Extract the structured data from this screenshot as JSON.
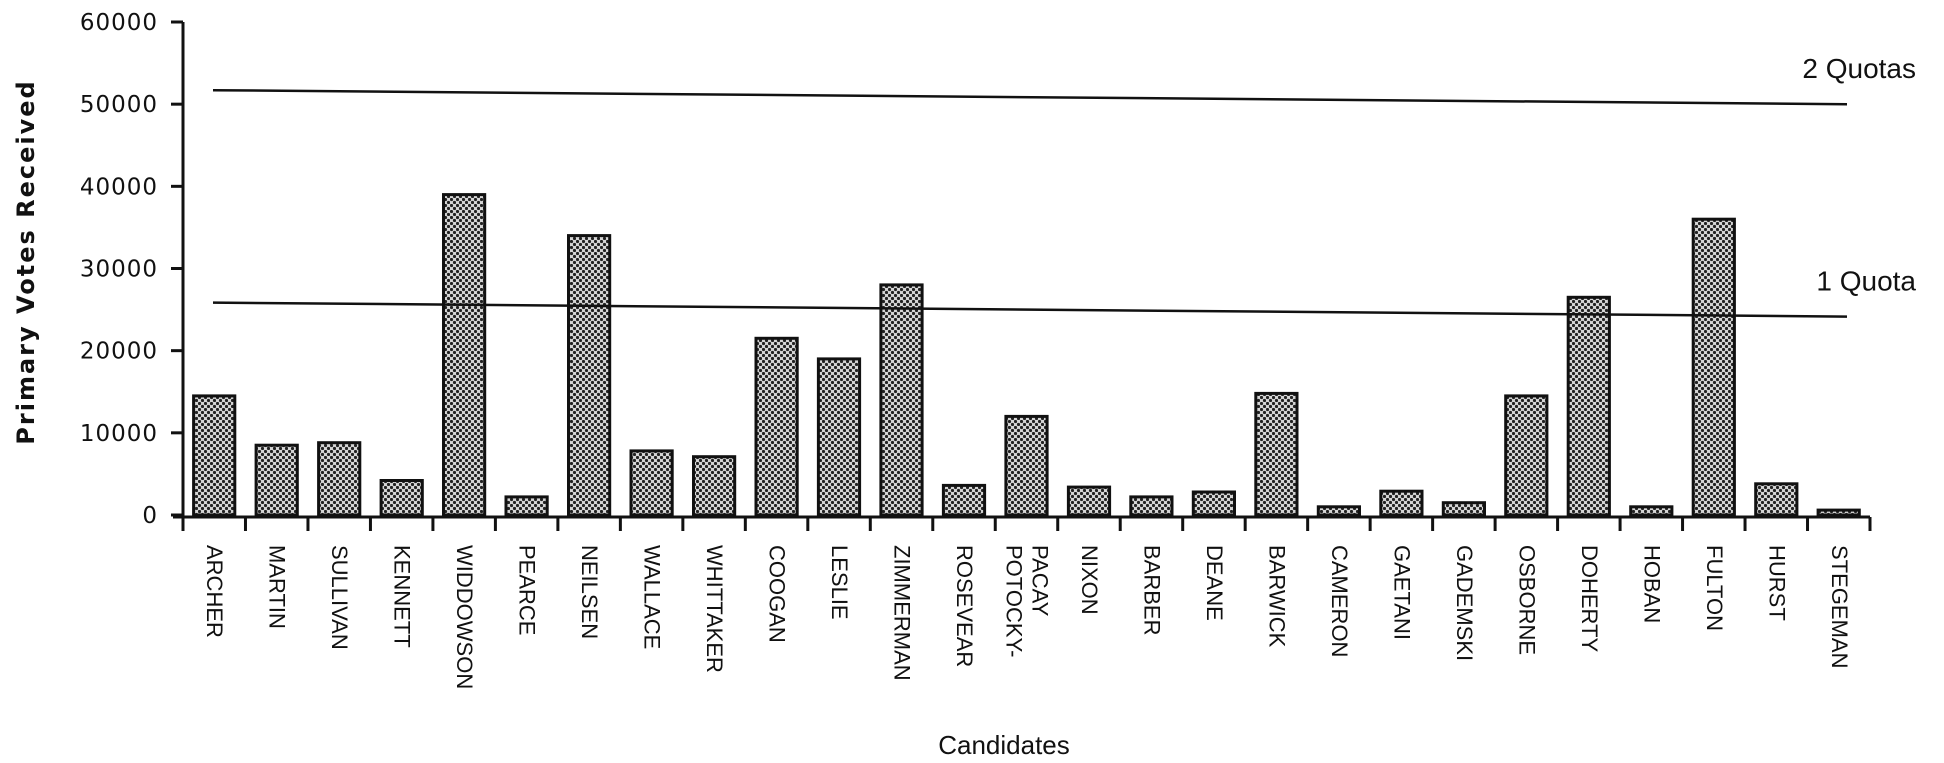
{
  "chart_data": {
    "type": "bar",
    "xlabel": "Candidates",
    "ylabel": "Primary Votes Received",
    "ylim": [
      0,
      60000
    ],
    "yticks": [
      0,
      10000,
      20000,
      30000,
      40000,
      50000,
      60000
    ],
    "categories": [
      [
        "ARCHER"
      ],
      [
        "MARTIN"
      ],
      [
        "SULLIVAN"
      ],
      [
        "KENNETT"
      ],
      [
        "WIDDOWSON"
      ],
      [
        "PEARCE"
      ],
      [
        "NEILSEN"
      ],
      [
        "WALLACE"
      ],
      [
        "WHITTAKER"
      ],
      [
        "COOGAN"
      ],
      [
        "LESLIE"
      ],
      [
        "ZIMMERMAN"
      ],
      [
        "ROSEVEAR"
      ],
      [
        "POTOCKY-",
        "PACAY"
      ],
      [
        "NIXON"
      ],
      [
        "BARBER"
      ],
      [
        "DEANE"
      ],
      [
        "BARWICK"
      ],
      [
        "CAMERON"
      ],
      [
        "GAETANI"
      ],
      [
        "GADEMSKI"
      ],
      [
        "OSBORNE"
      ],
      [
        "DOHERTY"
      ],
      [
        "HOBAN"
      ],
      [
        "FULTON"
      ],
      [
        "HURST"
      ],
      [
        "STEGEMAN"
      ]
    ],
    "values": [
      14500,
      8500,
      8800,
      4200,
      39000,
      2200,
      34000,
      7800,
      7100,
      21500,
      19000,
      28000,
      3600,
      12000,
      3400,
      2200,
      2800,
      14800,
      1000,
      2900,
      1500,
      14500,
      26500,
      1000,
      36000,
      3800,
      600
    ],
    "reference_lines": [
      {
        "label": "2 Quotas",
        "value": 51700
      },
      {
        "label": "1 Quota",
        "value": 25850
      }
    ],
    "grid": false,
    "legend": "none",
    "colors": {
      "bar_fill": "#8a8a8a",
      "bar_stroke": "#111111",
      "axis": "#111111"
    }
  }
}
